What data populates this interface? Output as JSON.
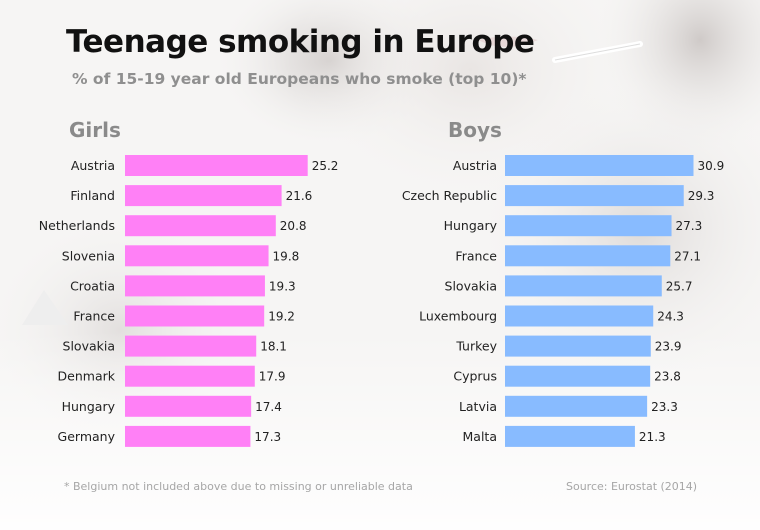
{
  "title": "Teenage smoking in Europe",
  "subtitle": "% of 15-19 year old Europeans who smoke (top 10)*",
  "footnote": "* Belgium not included above due to missing or unreliable data",
  "source": "Source: Eurostat (2014)",
  "colors": {
    "girls": "#ff80f6",
    "boys": "#88bbff"
  },
  "chart_data": [
    {
      "type": "bar",
      "orientation": "horizontal",
      "title": "Girls",
      "categories": [
        "Austria",
        "Finland",
        "Netherlands",
        "Slovenia",
        "Croatia",
        "France",
        "Slovakia",
        "Denmark",
        "Hungary",
        "Germany"
      ],
      "values": [
        25.2,
        21.6,
        20.8,
        19.8,
        19.3,
        19.2,
        18.1,
        17.9,
        17.4,
        17.3
      ],
      "value_labels": [
        "25.2",
        "21.6",
        "20.8",
        "19.8",
        "19.3",
        "19.2",
        "18.1",
        "17.9",
        "17.4",
        "17.3"
      ],
      "xlim": [
        0,
        31
      ]
    },
    {
      "type": "bar",
      "orientation": "horizontal",
      "title": "Boys",
      "categories": [
        "Austria",
        "Czech Republic",
        "Hungary",
        "France",
        "Slovakia",
        "Luxembourg",
        "Turkey",
        "Cyprus",
        "Latvia",
        "Malta"
      ],
      "values": [
        30.9,
        29.3,
        27.3,
        27.1,
        25.7,
        24.3,
        23.9,
        23.8,
        23.3,
        21.3
      ],
      "value_labels": [
        "30.9",
        "29.3",
        "27.3",
        "27.1",
        "25.7",
        "24.3",
        "23.9",
        "23.8",
        "23.3",
        "21.3"
      ],
      "xlim": [
        0,
        31
      ]
    }
  ]
}
